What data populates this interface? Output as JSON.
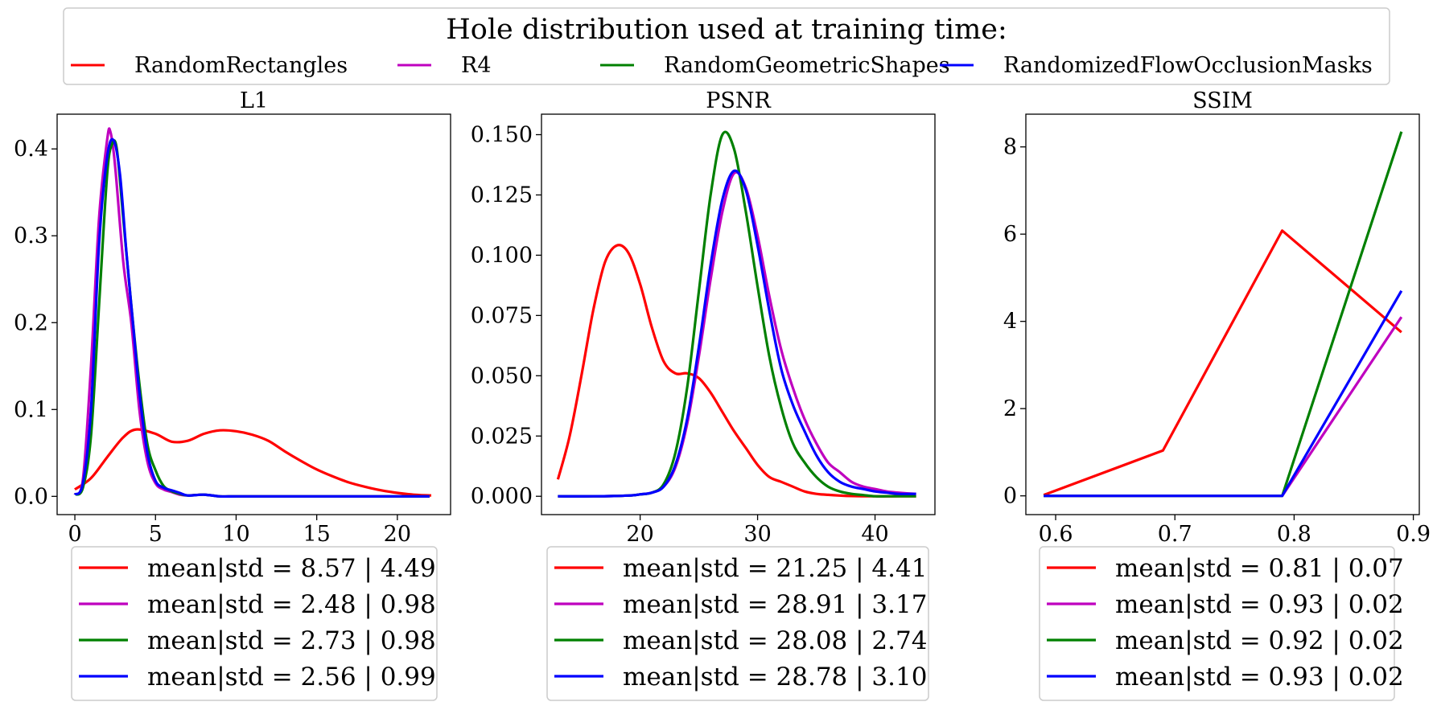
{
  "figure": {
    "legend_title": "Hole distribution used at training time:",
    "legend_entries": [
      {
        "name": "RandomRectangles",
        "color": "#ff0000"
      },
      {
        "name": "R4",
        "color": "#bf00bf"
      },
      {
        "name": "RandomGeometricShapes",
        "color": "#008000"
      },
      {
        "name": "RandomizedFlowOcclusionMasks",
        "color": "#0000ff"
      }
    ]
  },
  "chart_data": [
    {
      "type": "line",
      "title": "L1",
      "xlim": [
        -1.1,
        23.3
      ],
      "ylim": [
        -0.021,
        0.44
      ],
      "xticks": [
        0,
        5,
        10,
        15,
        20
      ],
      "yticks": [
        0.0,
        0.1,
        0.2,
        0.3,
        0.4
      ],
      "xtick_labels": [
        "0",
        "5",
        "10",
        "15",
        "20"
      ],
      "ytick_labels": [
        "0.0",
        "0.1",
        "0.2",
        "0.3",
        "0.4"
      ],
      "legend": [
        "mean|std = 8.57 | 4.49",
        "mean|std = 2.48 | 0.98",
        "mean|std = 2.73 | 0.98",
        "mean|std = 2.56 | 0.99"
      ],
      "series": [
        {
          "name": "RandomRectangles",
          "color": "#ff0000",
          "x": [
            0,
            1,
            2,
            3,
            3.8,
            5,
            6,
            7,
            8,
            9,
            10,
            11,
            12,
            13,
            14,
            15,
            16,
            17,
            18,
            19,
            20,
            21,
            22.1
          ],
          "y": [
            0.008,
            0.021,
            0.045,
            0.068,
            0.077,
            0.072,
            0.063,
            0.064,
            0.072,
            0.076,
            0.075,
            0.071,
            0.064,
            0.052,
            0.041,
            0.031,
            0.023,
            0.016,
            0.011,
            0.007,
            0.004,
            0.002,
            0.001
          ]
        },
        {
          "name": "R4",
          "color": "#bf00bf",
          "x": [
            0,
            0.5,
            1,
            1.5,
            2,
            2.2,
            2.5,
            3,
            3.5,
            4,
            4.5,
            5,
            5.5,
            6,
            6.5,
            7,
            8,
            9,
            10,
            12,
            15,
            18,
            22
          ],
          "y": [
            0.002,
            0.02,
            0.15,
            0.32,
            0.41,
            0.42,
            0.38,
            0.27,
            0.2,
            0.1,
            0.04,
            0.015,
            0.008,
            0.005,
            0.002,
            0.001,
            0.002,
            0.0,
            0.0,
            0.0,
            0.0,
            0.0,
            0.0
          ]
        },
        {
          "name": "RandomGeometricShapes",
          "color": "#008000",
          "x": [
            0,
            0.5,
            1,
            1.5,
            2,
            2.3,
            2.6,
            3,
            3.5,
            4,
            4.5,
            5,
            5.5,
            6,
            6.5,
            7,
            8,
            9,
            10,
            12,
            15,
            18,
            22
          ],
          "y": [
            0.002,
            0.01,
            0.07,
            0.22,
            0.37,
            0.405,
            0.4,
            0.32,
            0.22,
            0.13,
            0.06,
            0.03,
            0.012,
            0.006,
            0.003,
            0.001,
            0.002,
            0.0,
            0.0,
            0.0,
            0.0,
            0.0,
            0.0
          ]
        },
        {
          "name": "RandomizedFlowOcclusionMasks",
          "color": "#0000ff",
          "x": [
            0,
            0.5,
            1,
            1.5,
            2,
            2.4,
            2.8,
            3.2,
            3.6,
            4,
            4.5,
            5,
            5.5,
            6,
            6.5,
            7,
            8,
            9,
            10,
            12,
            15,
            18,
            22
          ],
          "y": [
            0.002,
            0.015,
            0.1,
            0.29,
            0.39,
            0.41,
            0.37,
            0.28,
            0.2,
            0.12,
            0.05,
            0.018,
            0.01,
            0.007,
            0.004,
            0.001,
            0.002,
            0.0,
            0.0,
            0.0,
            0.0,
            0.0,
            0.0
          ]
        }
      ]
    },
    {
      "type": "line",
      "title": "PSNR",
      "xlim": [
        11.6,
        45.1
      ],
      "ylim": [
        -0.0076,
        0.1585
      ],
      "xticks": [
        20,
        30,
        40
      ],
      "yticks": [
        0.0,
        0.025,
        0.05,
        0.075,
        0.1,
        0.125,
        0.15
      ],
      "xtick_labels": [
        "20",
        "30",
        "40"
      ],
      "ytick_labels": [
        "0.000",
        "0.025",
        "0.050",
        "0.075",
        "0.100",
        "0.125",
        "0.150"
      ],
      "legend": [
        "mean|std = 21.25 | 4.41",
        "mean|std = 28.91 | 3.17",
        "mean|std = 28.08 | 2.74",
        "mean|std = 28.78 | 3.10"
      ],
      "series": [
        {
          "name": "RandomRectangles",
          "color": "#ff0000",
          "x": [
            13,
            14,
            15,
            16,
            17,
            18,
            19,
            20,
            21,
            22,
            23,
            24,
            25,
            26,
            27,
            28,
            29,
            30,
            31,
            32,
            33,
            34,
            35,
            36,
            37,
            38,
            40,
            42,
            43.5
          ],
          "y": [
            0.007,
            0.025,
            0.05,
            0.077,
            0.097,
            0.104,
            0.101,
            0.088,
            0.07,
            0.056,
            0.051,
            0.051,
            0.049,
            0.043,
            0.035,
            0.027,
            0.02,
            0.013,
            0.008,
            0.006,
            0.004,
            0.002,
            0.001,
            0.0006,
            0.0003,
            0.0001,
            0.0,
            0.0,
            0.0
          ]
        },
        {
          "name": "R4",
          "color": "#bf00bf",
          "x": [
            13,
            16,
            19,
            20,
            21,
            22,
            23,
            24,
            25,
            26,
            27,
            28,
            29,
            30,
            31,
            32,
            33,
            34,
            35,
            36,
            37,
            38,
            39,
            40,
            41,
            42,
            43.5
          ],
          "y": [
            0.0,
            0.0,
            0.0003,
            0.0008,
            0.0015,
            0.004,
            0.012,
            0.03,
            0.058,
            0.09,
            0.118,
            0.134,
            0.128,
            0.108,
            0.083,
            0.061,
            0.045,
            0.032,
            0.022,
            0.014,
            0.01,
            0.006,
            0.004,
            0.003,
            0.002,
            0.0015,
            0.001
          ]
        },
        {
          "name": "RandomGeometricShapes",
          "color": "#008000",
          "x": [
            13,
            16,
            19,
            20,
            21,
            22,
            23,
            24,
            25,
            26,
            27,
            28,
            29,
            30,
            31,
            32,
            33,
            34,
            35,
            36,
            37,
            38,
            39,
            40,
            41,
            42,
            43.5
          ],
          "y": [
            0.0,
            0.0,
            0.0003,
            0.0008,
            0.0015,
            0.005,
            0.018,
            0.045,
            0.085,
            0.125,
            0.15,
            0.144,
            0.118,
            0.087,
            0.058,
            0.037,
            0.022,
            0.014,
            0.008,
            0.004,
            0.002,
            0.001,
            0.0005,
            0.0,
            0.0,
            0.0,
            0.0
          ]
        },
        {
          "name": "RandomizedFlowOcclusionMasks",
          "color": "#0000ff",
          "x": [
            13,
            16,
            19,
            20,
            21,
            22,
            23,
            24,
            25,
            26,
            27,
            28,
            29,
            30,
            31,
            32,
            33,
            34,
            35,
            36,
            37,
            38,
            39,
            40,
            41,
            42,
            43.5
          ],
          "y": [
            0.0,
            0.0,
            0.0003,
            0.0008,
            0.0015,
            0.004,
            0.013,
            0.032,
            0.062,
            0.096,
            0.123,
            0.135,
            0.127,
            0.104,
            0.077,
            0.053,
            0.038,
            0.027,
            0.017,
            0.01,
            0.006,
            0.004,
            0.003,
            0.002,
            0.0015,
            0.001,
            0.001
          ]
        }
      ]
    },
    {
      "type": "line",
      "title": "SSIM",
      "xlim": [
        0.575,
        0.905
      ],
      "ylim": [
        -0.43,
        8.75
      ],
      "xticks": [
        0.6,
        0.7,
        0.8,
        0.9
      ],
      "yticks": [
        0,
        2,
        4,
        6,
        8
      ],
      "xtick_labels": [
        "0.6",
        "0.7",
        "0.8",
        "0.9"
      ],
      "ytick_labels": [
        "0",
        "2",
        "4",
        "6",
        "8"
      ],
      "legend": [
        "mean|std = 0.81 | 0.07",
        "mean|std = 0.93 | 0.02",
        "mean|std = 0.92 | 0.02",
        "mean|std = 0.93 | 0.02"
      ],
      "series": [
        {
          "name": "RandomRectangles",
          "color": "#ff0000",
          "x": [
            0.59,
            0.69,
            0.79,
            0.89
          ],
          "y": [
            0.02,
            1.04,
            6.08,
            3.75
          ]
        },
        {
          "name": "R4",
          "color": "#bf00bf",
          "x": [
            0.59,
            0.69,
            0.79,
            0.89
          ],
          "y": [
            0,
            0,
            0,
            4.1
          ]
        },
        {
          "name": "RandomGeometricShapes",
          "color": "#008000",
          "x": [
            0.59,
            0.69,
            0.79,
            0.89
          ],
          "y": [
            0,
            0,
            0,
            8.35
          ]
        },
        {
          "name": "RandomizedFlowOcclusionMasks",
          "color": "#0000ff",
          "x": [
            0.59,
            0.69,
            0.79,
            0.89
          ],
          "y": [
            0,
            0,
            0,
            4.7
          ]
        }
      ]
    }
  ]
}
